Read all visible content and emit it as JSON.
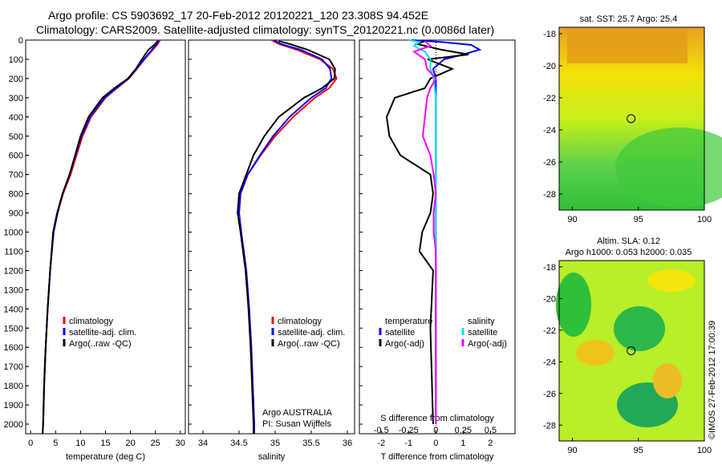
{
  "header": {
    "line1": "Argo profile: CS 5903692_17 20-Feb-2012 20120221_120 23.308S 94.452E",
    "line2": "Climatology: CARS2009. Satellite-adjusted climatology: synTS_20120221.nc (0.0086d later)"
  },
  "footer": {
    "stamp": "©IMOS 27-Feb-2012 17:00:39"
  },
  "colors": {
    "climatology": "#ff0000",
    "satellite": "#0000ff",
    "argo": "#000000",
    "sal_satellite": "#00e5e5",
    "sal_argo": "#ff00ff"
  },
  "chart_data": [
    {
      "type": "line",
      "panel": "temperature",
      "xlabel": "temperature (deg C)",
      "xlim": [
        -1,
        31
      ],
      "xticks": [
        0,
        5,
        10,
        15,
        20,
        25,
        30
      ],
      "ylim": [
        0,
        2050
      ],
      "yticks": [
        0,
        100,
        200,
        300,
        400,
        500,
        600,
        700,
        800,
        900,
        1000,
        1100,
        1200,
        1300,
        1400,
        1500,
        1600,
        1700,
        1800,
        1900,
        2000
      ],
      "y_reversed": true,
      "legend": [
        "climatology",
        "satellite-adj. clim.",
        "Argo(..raw -QC)"
      ],
      "series": [
        {
          "name": "climatology",
          "color": "#ff0000",
          "depth": [
            0,
            20,
            50,
            100,
            150,
            200,
            250,
            300,
            400,
            500,
            600,
            700,
            800,
            900,
            1000,
            1200,
            1400,
            1600,
            1800,
            2000,
            2050
          ],
          "values": [
            25.9,
            25.5,
            24.5,
            22.8,
            21.3,
            19.7,
            17.3,
            15.0,
            12.1,
            10.4,
            9.2,
            8.0,
            6.5,
            5.4,
            4.6,
            3.9,
            3.4,
            3.0,
            2.7,
            2.5,
            2.4
          ]
        },
        {
          "name": "satellite-adj. clim.",
          "color": "#0000ff",
          "depth": [
            0,
            20,
            50,
            100,
            150,
            200,
            250,
            300,
            400,
            500,
            600,
            700,
            800,
            900,
            1000,
            1200,
            1400,
            1600,
            1800,
            2000,
            2050
          ],
          "values": [
            25.7,
            25.3,
            24.3,
            22.7,
            21.2,
            19.6,
            17.2,
            14.8,
            11.9,
            10.2,
            9.0,
            7.8,
            6.4,
            5.4,
            4.6,
            3.9,
            3.4,
            3.0,
            2.7,
            2.5,
            2.4
          ]
        },
        {
          "name": "Argo(..raw -QC)",
          "color": "#000000",
          "depth": [
            5,
            20,
            50,
            100,
            150,
            200,
            250,
            300,
            400,
            500,
            600,
            700,
            800,
            900,
            1000,
            1200,
            1400,
            1600,
            1800,
            2000,
            2050
          ],
          "values": [
            25.4,
            25.0,
            23.6,
            22.3,
            21.1,
            19.5,
            16.8,
            14.4,
            11.6,
            10.0,
            8.9,
            7.8,
            6.4,
            5.3,
            4.5,
            3.9,
            3.4,
            3.0,
            2.7,
            2.5,
            2.4
          ]
        }
      ]
    },
    {
      "type": "line",
      "panel": "salinity",
      "xlabel": "salinity",
      "xlim": [
        33.8,
        36.1
      ],
      "xticks": [
        34,
        34.5,
        35,
        35.5,
        36
      ],
      "ylim": [
        0,
        2050
      ],
      "y_reversed": true,
      "legend": [
        "climatology",
        "satellite-adj. clim.",
        "Argo(..raw -QC)"
      ],
      "annotations": [
        "Argo AUSTRALIA",
        "PI: Susan Wijffels"
      ],
      "series": [
        {
          "name": "climatology",
          "color": "#ff0000",
          "depth": [
            0,
            20,
            50,
            100,
            150,
            200,
            250,
            300,
            400,
            500,
            600,
            700,
            800,
            900,
            1000,
            1200,
            1400,
            1600,
            1800,
            2000,
            2050
          ],
          "values": [
            34.95,
            35.05,
            35.3,
            35.62,
            35.8,
            35.85,
            35.75,
            35.55,
            35.25,
            35.0,
            34.8,
            34.62,
            34.52,
            34.5,
            34.53,
            34.6,
            34.64,
            34.67,
            34.69,
            34.71,
            34.71
          ]
        },
        {
          "name": "satellite-adj. clim.",
          "color": "#0000ff",
          "depth": [
            0,
            20,
            50,
            100,
            150,
            200,
            250,
            300,
            400,
            500,
            600,
            700,
            800,
            900,
            1000,
            1200,
            1400,
            1600,
            1800,
            2000,
            2050
          ],
          "values": [
            34.98,
            35.08,
            35.35,
            35.65,
            35.76,
            35.78,
            35.7,
            35.5,
            35.2,
            34.97,
            34.79,
            34.62,
            34.52,
            34.5,
            34.53,
            34.6,
            34.64,
            34.67,
            34.69,
            34.71,
            34.71
          ]
        },
        {
          "name": "Argo(..raw -QC)",
          "color": "#000000",
          "depth": [
            5,
            20,
            50,
            100,
            150,
            200,
            250,
            300,
            400,
            500,
            600,
            700,
            800,
            900,
            1000,
            1200,
            1400,
            1600,
            1800,
            2000,
            2050
          ],
          "values": [
            35.05,
            35.2,
            35.45,
            35.75,
            35.83,
            35.82,
            35.65,
            35.4,
            35.05,
            34.85,
            34.7,
            34.6,
            34.5,
            34.48,
            34.52,
            34.59,
            34.63,
            34.66,
            34.68,
            34.7,
            34.7
          ]
        }
      ]
    },
    {
      "type": "line",
      "panel": "difference",
      "xlabel": "T difference from climatology",
      "xlabel_top": "S difference from climatology",
      "xlim": [
        -2.8,
        2.9
      ],
      "xticks": [
        -2,
        -1,
        0,
        1,
        2
      ],
      "xticks_top": [
        -0.5,
        -0.25,
        0,
        0.25,
        0.5
      ],
      "ylim": [
        0,
        2050
      ],
      "y_reversed": true,
      "legend_groups": {
        "temperature": "temperature",
        "salinity": "salinity"
      },
      "legend": [
        "satellite",
        "Argo(-adj)",
        "satellite",
        "Argo(-adj)"
      ],
      "series": [
        {
          "name": "temperature satellite",
          "color": "#0000ff",
          "depth": [
            0,
            10,
            25,
            50,
            75,
            100,
            150,
            200,
            300,
            400,
            600,
            800,
            1000,
            1500,
            2000
          ],
          "values": [
            -0.9,
            0.2,
            1.3,
            1.6,
            1.0,
            0.3,
            -0.1,
            0.0,
            0.0,
            0.0,
            0.0,
            0.0,
            0.0,
            0.0,
            0.0
          ]
        },
        {
          "name": "temperature Argo(-adj)",
          "color": "#000000",
          "depth": [
            5,
            20,
            50,
            75,
            100,
            150,
            200,
            250,
            300,
            400,
            500,
            600,
            700,
            800,
            900,
            1000,
            1100,
            1200,
            1500,
            2000
          ],
          "values": [
            -0.4,
            -0.7,
            0.2,
            1.2,
            -0.3,
            0.6,
            -0.2,
            -0.4,
            -1.5,
            -1.8,
            -1.7,
            -1.3,
            -0.2,
            -0.1,
            -0.2,
            -0.5,
            -0.6,
            -0.1,
            -0.2,
            -0.1
          ]
        },
        {
          "name": "salinity satellite",
          "color": "#00e5e5",
          "depth": [
            0,
            10,
            30,
            60,
            100,
            150,
            200,
            300,
            400,
            600,
            800,
            1000,
            1500,
            2000
          ],
          "values": [
            -0.25,
            -0.15,
            -0.2,
            -0.1,
            -0.05,
            -0.05,
            -0.02,
            0.0,
            0.0,
            0.0,
            0.0,
            0.0,
            0.0,
            0.0
          ]
        },
        {
          "name": "salinity Argo(-adj)",
          "color": "#ff00ff",
          "depth": [
            5,
            30,
            60,
            100,
            150,
            200,
            250,
            300,
            400,
            500,
            600,
            700,
            800,
            900,
            1000,
            1100,
            1200,
            1500,
            2000
          ],
          "values": [
            -0.1,
            -0.05,
            -0.2,
            -0.1,
            -0.08,
            0.0,
            -0.05,
            -0.08,
            -0.1,
            -0.12,
            -0.05,
            -0.02,
            0.0,
            -0.02,
            -0.02,
            0.0,
            0.0,
            0.0,
            0.0
          ]
        }
      ]
    },
    {
      "type": "heatmap",
      "panel": "sst_map",
      "title": "sat. SST: 25.7 Argo: 25.4",
      "xlim": [
        89,
        100
      ],
      "ylim": [
        -29,
        -17.6
      ],
      "xticks": [
        90,
        95,
        100
      ],
      "yticks": [
        -18,
        -20,
        -22,
        -24,
        -26,
        -28
      ],
      "marker": {
        "lon": 94.45,
        "lat": -23.3
      }
    },
    {
      "type": "heatmap",
      "panel": "sla_map",
      "title": [
        "Altim. SLA: 0.12",
        "Argo h1000: 0.053 h2000: 0.035"
      ],
      "xlim": [
        89,
        100
      ],
      "ylim": [
        -29,
        -17.6
      ],
      "xticks": [
        90,
        95,
        100
      ],
      "yticks": [
        -18,
        -20,
        -22,
        -24,
        -26,
        -28
      ],
      "marker": {
        "lon": 94.45,
        "lat": -23.3
      }
    }
  ]
}
